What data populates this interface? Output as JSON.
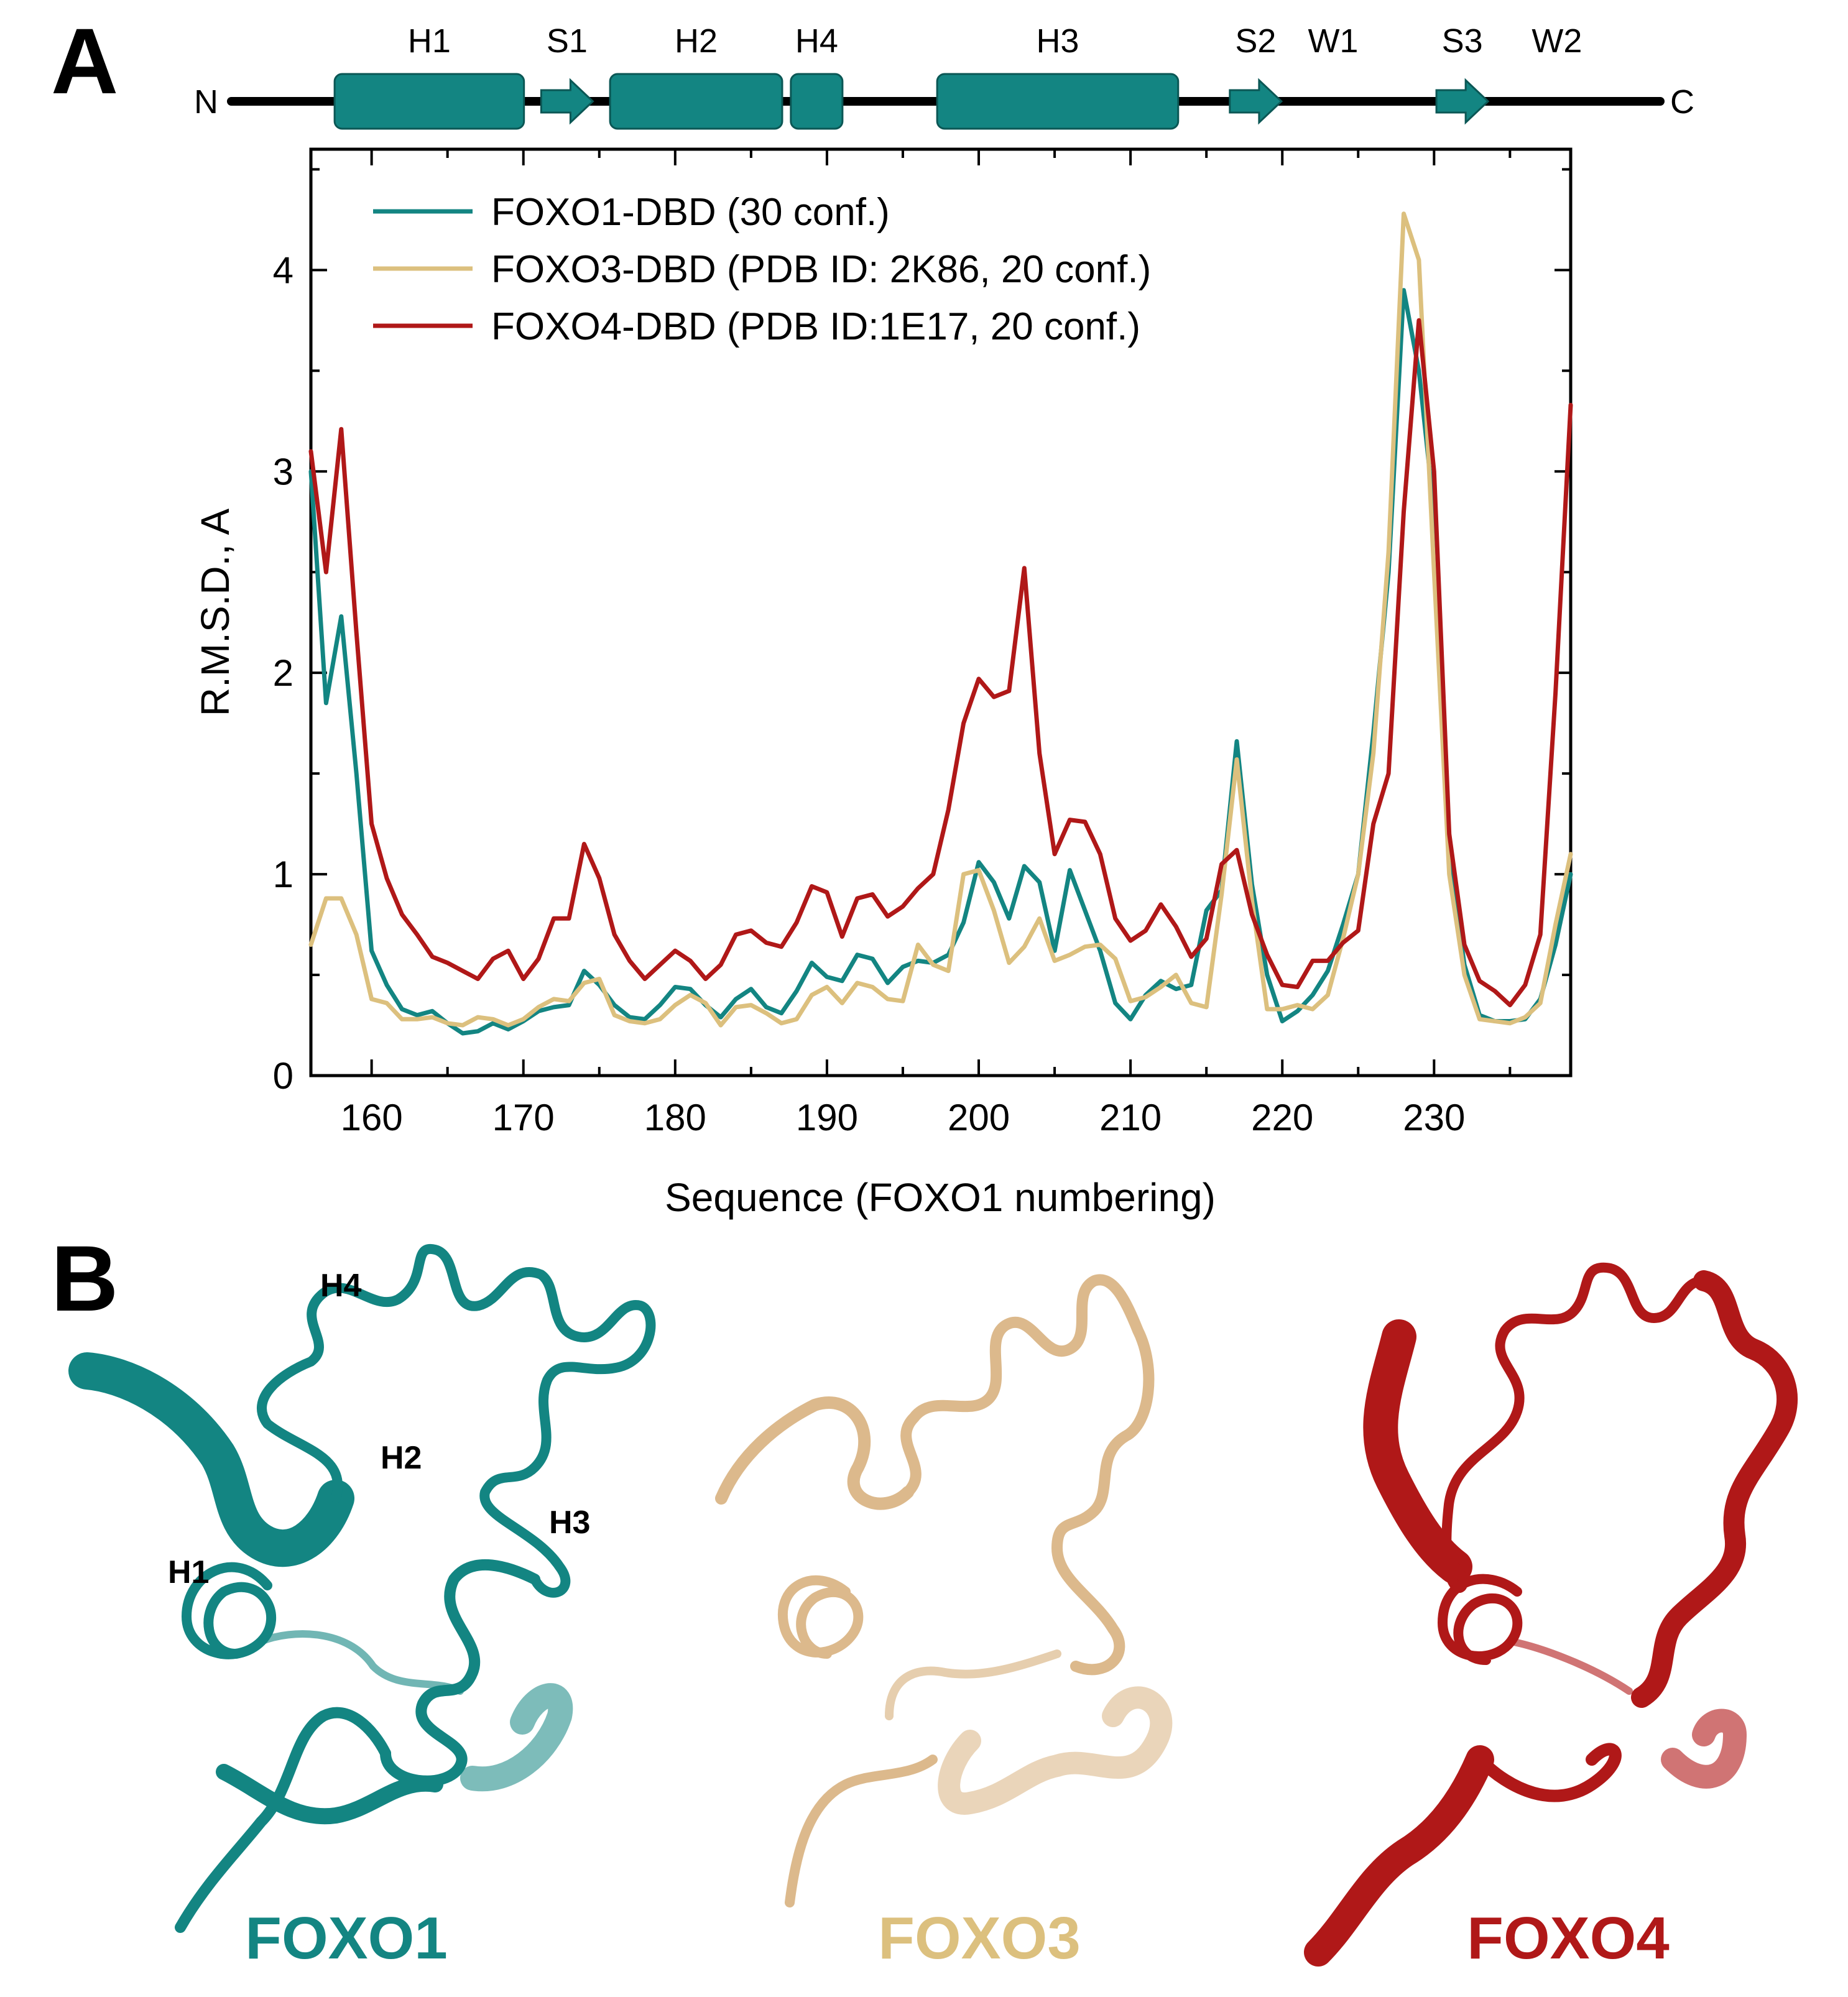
{
  "panel_a": {
    "letter": "A",
    "topology": {
      "n_term": "N",
      "c_term": "C",
      "color": "#138582",
      "elements": [
        {
          "label": "H1",
          "kind": "helix",
          "start": 159,
          "end": 170
        },
        {
          "label": "S1",
          "kind": "strand",
          "start": 171,
          "end": 174
        },
        {
          "label": "H2",
          "kind": "helix",
          "start": 175,
          "end": 185
        },
        {
          "label": "H4",
          "kind": "helix",
          "start": 185.5,
          "end": 188.5
        },
        {
          "label": "H3",
          "kind": "helix",
          "start": 194,
          "end": 208
        },
        {
          "label": "S2",
          "kind": "strand",
          "start": 211,
          "end": 214
        },
        {
          "label": "W1",
          "kind": "wing",
          "start": 217,
          "end": 217
        },
        {
          "label": "S3",
          "kind": "strand",
          "start": 223,
          "end": 226
        },
        {
          "label": "W2",
          "kind": "wing",
          "start": 230,
          "end": 230
        }
      ]
    }
  },
  "panel_b": {
    "letter": "B",
    "structure_labels": [
      "H4",
      "H2",
      "H3",
      "H1"
    ],
    "proteins": [
      {
        "name": "FOXO1",
        "color": "#138582"
      },
      {
        "name": "FOXO3",
        "color": "#dcc07e"
      },
      {
        "name": "FOXO4",
        "color": "#b01818"
      }
    ]
  },
  "chart_data": {
    "type": "line",
    "title": "",
    "xlabel": "Sequence (FOXO1 numbering)",
    "ylabel": "R.M.S.D., A",
    "xlim": [
      156,
      239
    ],
    "ylim": [
      0,
      4.6
    ],
    "xticks": [
      160,
      170,
      180,
      190,
      200,
      210,
      220,
      230
    ],
    "yticks": [
      0,
      1,
      2,
      3,
      4
    ],
    "grid": false,
    "legend_position": "top-left",
    "x": [
      156,
      157,
      158,
      159,
      160,
      161,
      162,
      163,
      164,
      165,
      166,
      167,
      168,
      169,
      170,
      171,
      172,
      173,
      174,
      175,
      176,
      177,
      178,
      179,
      180,
      181,
      182,
      183,
      184,
      185,
      186,
      187,
      188,
      189,
      190,
      191,
      192,
      193,
      194,
      195,
      196,
      197,
      198,
      199,
      200,
      201,
      202,
      203,
      204,
      205,
      206,
      207,
      208,
      209,
      210,
      211,
      212,
      213,
      214,
      215,
      216,
      217,
      218,
      219,
      220,
      221,
      222,
      223,
      224,
      225,
      226,
      227,
      228,
      229,
      230,
      231,
      232,
      233,
      234,
      235,
      236,
      237,
      238,
      239
    ],
    "series": [
      {
        "name": "FOXO1-DBD (30 conf.)",
        "color": "#138582",
        "values": [
          3.0,
          1.85,
          2.28,
          1.5,
          0.62,
          0.45,
          0.33,
          0.3,
          0.32,
          0.26,
          0.21,
          0.22,
          0.26,
          0.23,
          0.27,
          0.32,
          0.34,
          0.35,
          0.52,
          0.45,
          0.35,
          0.29,
          0.28,
          0.35,
          0.44,
          0.43,
          0.35,
          0.29,
          0.38,
          0.43,
          0.34,
          0.31,
          0.42,
          0.56,
          0.49,
          0.47,
          0.6,
          0.58,
          0.46,
          0.54,
          0.57,
          0.56,
          0.6,
          0.76,
          1.06,
          0.96,
          0.78,
          1.04,
          0.96,
          0.62,
          1.02,
          0.82,
          0.62,
          0.36,
          0.28,
          0.4,
          0.47,
          0.43,
          0.45,
          0.82,
          0.92,
          1.66,
          0.95,
          0.5,
          0.27,
          0.32,
          0.4,
          0.52,
          0.75,
          1.0,
          1.7,
          2.5,
          3.9,
          3.5,
          2.8,
          1.1,
          0.55,
          0.3,
          0.27,
          0.27,
          0.28,
          0.38,
          0.65,
          1.0
        ]
      },
      {
        "name": "FOXO3-DBD (PDB ID: 2K86, 20 conf.)",
        "color": "#dcc07e",
        "values": [
          0.65,
          0.88,
          0.88,
          0.7,
          0.38,
          0.36,
          0.28,
          0.28,
          0.29,
          0.26,
          0.25,
          0.29,
          0.28,
          0.25,
          0.28,
          0.34,
          0.38,
          0.37,
          0.46,
          0.48,
          0.3,
          0.27,
          0.26,
          0.28,
          0.35,
          0.4,
          0.36,
          0.25,
          0.34,
          0.35,
          0.31,
          0.26,
          0.28,
          0.4,
          0.44,
          0.36,
          0.46,
          0.44,
          0.38,
          0.37,
          0.65,
          0.55,
          0.52,
          1.0,
          1.02,
          0.82,
          0.56,
          0.64,
          0.78,
          0.57,
          0.6,
          0.64,
          0.65,
          0.58,
          0.37,
          0.39,
          0.44,
          0.5,
          0.36,
          0.34,
          0.9,
          1.57,
          0.87,
          0.33,
          0.33,
          0.35,
          0.33,
          0.4,
          0.68,
          1.0,
          1.6,
          2.6,
          4.28,
          4.05,
          2.5,
          1.0,
          0.5,
          0.28,
          0.27,
          0.26,
          0.29,
          0.36,
          0.75,
          1.1
        ]
      },
      {
        "name": "FOXO4-DBD (PDB ID:1E17, 20 conf.)",
        "color": "#b01818",
        "values": [
          3.1,
          2.5,
          3.21,
          2.2,
          1.25,
          0.98,
          0.8,
          0.7,
          0.59,
          0.56,
          0.52,
          0.48,
          0.58,
          0.62,
          0.48,
          0.58,
          0.78,
          0.78,
          1.15,
          0.98,
          0.7,
          0.57,
          0.48,
          0.55,
          0.62,
          0.57,
          0.48,
          0.55,
          0.7,
          0.72,
          0.66,
          0.64,
          0.76,
          0.94,
          0.91,
          0.69,
          0.88,
          0.9,
          0.79,
          0.84,
          0.93,
          1.0,
          1.32,
          1.75,
          1.97,
          1.88,
          1.91,
          2.52,
          1.6,
          1.1,
          1.27,
          1.26,
          1.1,
          0.78,
          0.67,
          0.72,
          0.85,
          0.74,
          0.59,
          0.68,
          1.05,
          1.12,
          0.8,
          0.6,
          0.45,
          0.44,
          0.57,
          0.57,
          0.66,
          0.72,
          1.25,
          1.5,
          2.8,
          3.75,
          3.0,
          1.2,
          0.65,
          0.47,
          0.42,
          0.35,
          0.45,
          0.7,
          1.9,
          3.33
        ]
      }
    ]
  }
}
